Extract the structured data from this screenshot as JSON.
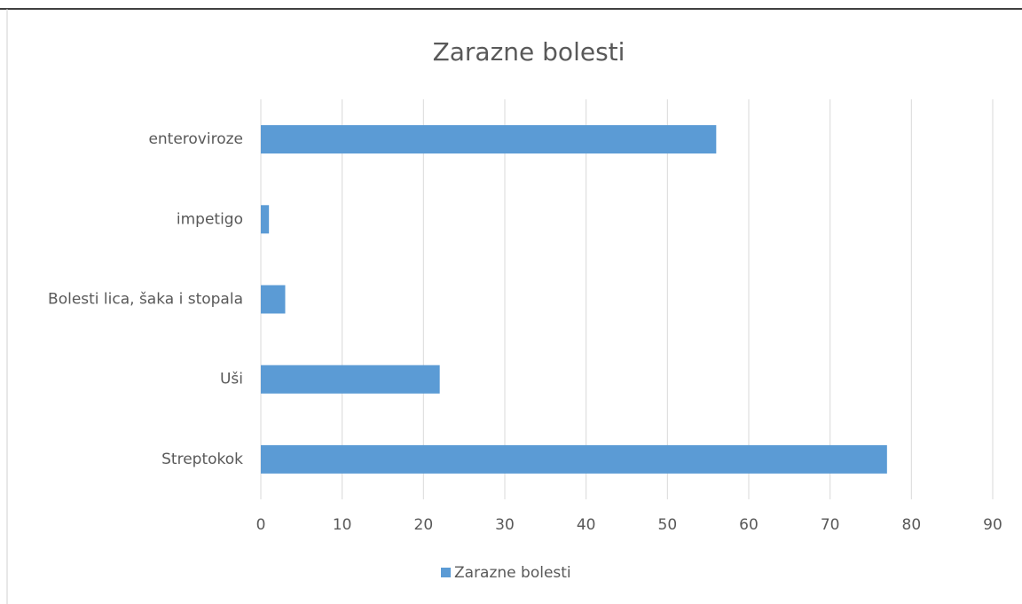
{
  "chart_data": {
    "type": "bar",
    "orientation": "horizontal",
    "title": "Zarazne bolesti",
    "categories": [
      "enteroviroze",
      "impetigo",
      "Bolesti lica, šaka i stopala",
      "Uši",
      "Streptokok"
    ],
    "series": [
      {
        "name": "Zarazne bolesti",
        "color": "#5b9bd5",
        "values": [
          56,
          1,
          3,
          22,
          77
        ]
      }
    ],
    "xlim": [
      0,
      90
    ],
    "xticks": [
      0,
      10,
      20,
      30,
      40,
      50,
      60,
      70,
      80,
      90
    ],
    "grid": true,
    "legend": "bottom"
  }
}
